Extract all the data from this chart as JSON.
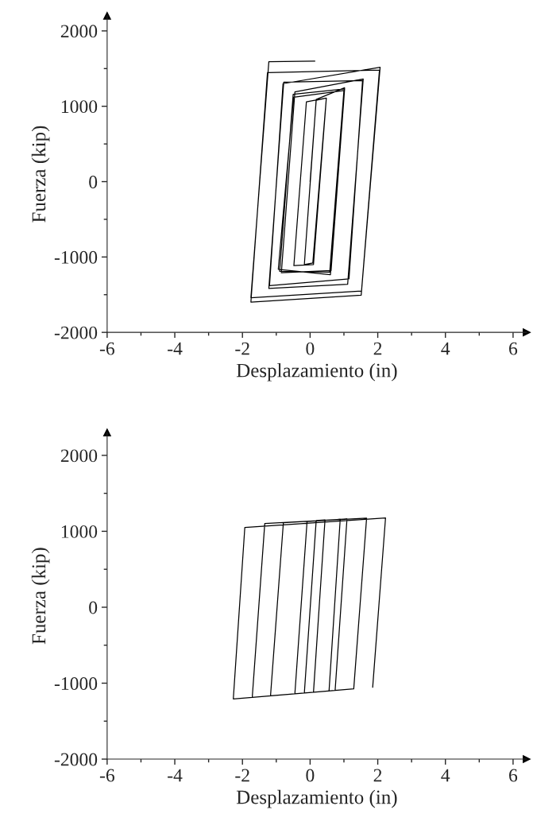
{
  "chart_data": [
    {
      "type": "line",
      "xlabel": "Desplazamiento (in)",
      "ylabel": "Fuerza (kip)",
      "xlim": [
        -6,
        6.4
      ],
      "ylim": [
        -2000,
        2200
      ],
      "xticks": [
        -6,
        -4,
        -2,
        0,
        2,
        4,
        6
      ],
      "yticks": [
        -2000,
        -1000,
        0,
        1000,
        2000
      ],
      "grid": false,
      "legend": false,
      "marker": "none",
      "line_style": "solid",
      "series": [
        {
          "color": "#000000",
          "x": [
            0,
            0.18,
            0.48,
            0.1,
            -0.48,
            -0.11,
            0.48,
            0.08,
            -0.17,
            0.18,
            1.02,
            0.6,
            -0.94,
            -0.49,
            1.0,
            0.58,
            -0.9,
            -0.5,
            1.02,
            0.62,
            -0.85,
            -0.45,
            1.57,
            1.11,
            -1.22,
            -0.78,
            1.55,
            1.15,
            -1.2,
            -0.8,
            2.07,
            1.51,
            -1.75,
            -1.26,
            2.05,
            1.52,
            -1.75,
            -1.22,
            0.14
          ],
          "values": [
            0,
            1080,
            1109,
            -1100,
            -1115,
            1058,
            1109,
            -1080,
            -1100,
            1090,
            1246,
            -1235,
            -1163,
            1120,
            1210,
            -1200,
            -1190,
            1160,
            1230,
            -1180,
            -1210,
            1190,
            1362,
            -1362,
            -1417,
            1319,
            1340,
            -1290,
            -1380,
            1300,
            1518,
            -1507,
            -1598,
            1446,
            1480,
            -1450,
            -1540,
            1591,
            1598
          ]
        }
      ]
    },
    {
      "type": "line",
      "xlabel": "Desplazamiento (in)",
      "ylabel": "Fuerza (kip)",
      "xlim": [
        -6,
        6.4
      ],
      "ylim": [
        -2000,
        2300
      ],
      "xticks": [
        -6,
        -4,
        -2,
        0,
        2,
        4,
        6
      ],
      "yticks": [
        -2000,
        -1000,
        0,
        1000,
        2000
      ],
      "grid": false,
      "legend": false,
      "marker": "none",
      "line_style": "solid",
      "series": [
        {
          "color": "#000000",
          "x": [
            -0.17,
            0.18,
            0.44,
            0.1,
            -0.45,
            -0.09,
            0.89,
            0.56,
            -1.17,
            -0.79,
            1.09,
            0.74,
            -1.71,
            -1.34,
            1.67,
            1.29,
            -2.27,
            -1.93,
            2.23,
            1.85
          ],
          "values": [
            -1129,
            1142,
            1149,
            -1119,
            -1139,
            1128,
            1158,
            -1102,
            -1166,
            1114,
            1162,
            -1095,
            -1186,
            1103,
            1173,
            -1075,
            -1207,
            1051,
            1177,
            -1054
          ]
        }
      ]
    }
  ]
}
